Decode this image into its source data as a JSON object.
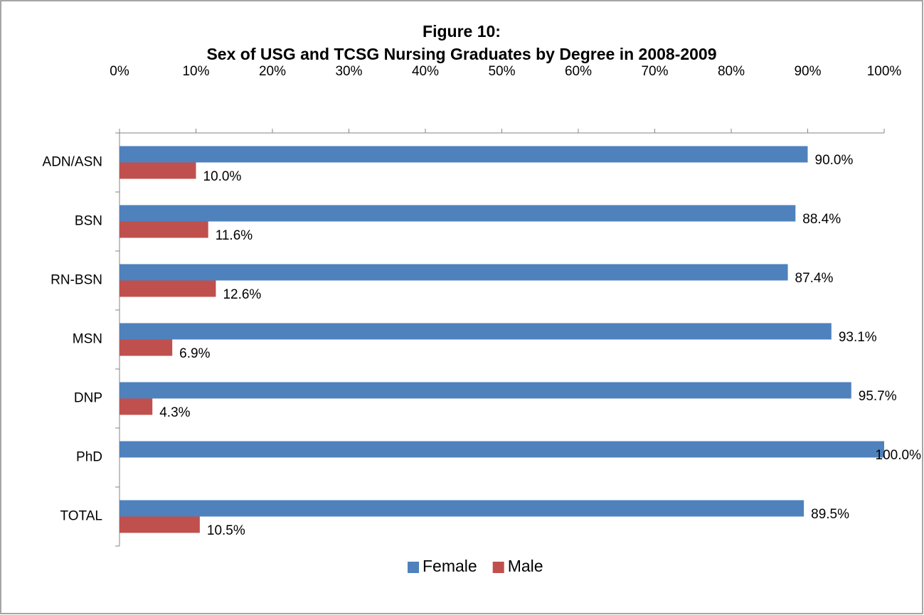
{
  "chart_data": {
    "type": "barh",
    "title": "Figure 10:",
    "subtitle": "Sex of USG and TCSG Nursing Graduates by Degree in 2008-2009",
    "categories": [
      "ADN/ASN",
      "BSN",
      "RN-BSN",
      "MSN",
      "DNP",
      "PhD",
      "TOTAL"
    ],
    "series": [
      {
        "name": "Female",
        "color": "#4f81bd",
        "values": [
          90.0,
          88.4,
          87.4,
          93.1,
          95.7,
          100.0,
          89.5
        ],
        "value_labels": [
          "90.0%",
          "88.4%",
          "87.4%",
          "93.1%",
          "95.7%",
          "100.0%",
          "89.5%"
        ]
      },
      {
        "name": "Male",
        "color": "#c0504d",
        "values": [
          10.0,
          11.6,
          12.6,
          6.9,
          4.3,
          0,
          10.5
        ],
        "value_labels": [
          "10.0%",
          "11.6%",
          "12.6%",
          "6.9%",
          "4.3%",
          null,
          "10.5%"
        ]
      }
    ],
    "xlim": [
      0,
      100
    ],
    "xticks": [
      {
        "value": 0,
        "label": "0%"
      },
      {
        "value": 10,
        "label": "10%"
      },
      {
        "value": 20,
        "label": "20%"
      },
      {
        "value": 30,
        "label": "30%"
      },
      {
        "value": 40,
        "label": "40%"
      },
      {
        "value": 50,
        "label": "50%"
      },
      {
        "value": 60,
        "label": "60%"
      },
      {
        "value": 70,
        "label": "70%"
      },
      {
        "value": 80,
        "label": "80%"
      },
      {
        "value": 90,
        "label": "90%"
      },
      {
        "value": 100,
        "label": "100%"
      }
    ],
    "legend": "bottom"
  }
}
